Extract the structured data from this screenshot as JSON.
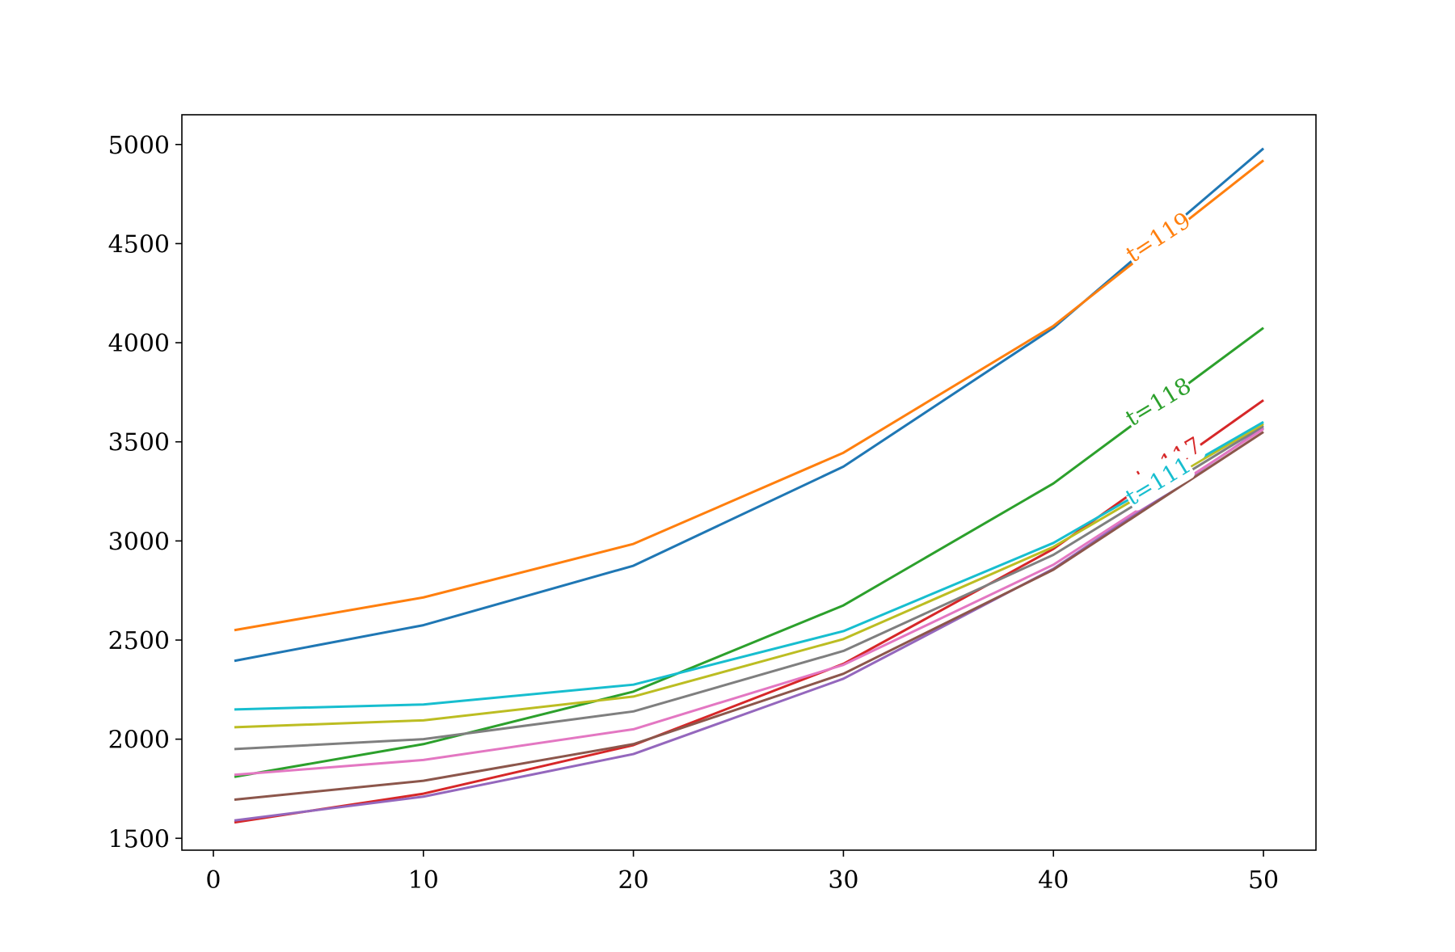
{
  "chart_data": {
    "type": "line",
    "title": "",
    "xlabel": "",
    "ylabel": "",
    "xlim": [
      -1.5,
      52.5
    ],
    "ylim": [
      1440,
      5150
    ],
    "xticks": [
      0,
      10,
      20,
      30,
      40,
      50
    ],
    "yticks": [
      1500,
      2000,
      2500,
      3000,
      3500,
      4000,
      4500,
      5000
    ],
    "grid": false,
    "x": [
      1,
      10,
      20,
      30,
      40,
      50
    ],
    "series": [
      {
        "color": "#1f77b4",
        "values": [
          2395,
          2575,
          2875,
          3375,
          4075,
          4980
        ]
      },
      {
        "color": "#ff7f0e",
        "values": [
          2550,
          2715,
          2985,
          3445,
          4085,
          4920
        ]
      },
      {
        "color": "#2ca02c",
        "values": [
          1810,
          1975,
          2240,
          2675,
          3290,
          4075
        ]
      },
      {
        "color": "#d62728",
        "values": [
          1580,
          1725,
          1970,
          2380,
          2960,
          3710
        ]
      },
      {
        "color": "#9467bd",
        "values": [
          1590,
          1710,
          1925,
          2305,
          2860,
          3570
        ]
      },
      {
        "color": "#8c564b",
        "values": [
          1695,
          1790,
          1975,
          2330,
          2855,
          3550
        ]
      },
      {
        "color": "#e377c2",
        "values": [
          1820,
          1895,
          2050,
          2375,
          2880,
          3565
        ]
      },
      {
        "color": "#7f7f7f",
        "values": [
          1950,
          2000,
          2140,
          2445,
          2930,
          3580
        ]
      },
      {
        "color": "#bcbd22",
        "values": [
          2060,
          2095,
          2215,
          2505,
          2970,
          3590
        ]
      },
      {
        "color": "#17becf",
        "values": [
          2150,
          2175,
          2275,
          2545,
          2990,
          3600
        ]
      }
    ],
    "annotations": [
      {
        "text": "t=119",
        "series": 1,
        "color": "#ff7f0e",
        "x": 45,
        "y": 4530,
        "angle_deg": -33
      },
      {
        "text": "t=118",
        "series": 2,
        "color": "#2ca02c",
        "x": 45,
        "y": 3700,
        "angle_deg": -31
      },
      {
        "text": "t=117",
        "series": 3,
        "color": "#d62728",
        "x": 45.5,
        "y": 3400,
        "angle_deg": -31
      },
      {
        "text": "t=111",
        "series": 9,
        "color": "#17becf",
        "x": 45,
        "y": 3300,
        "angle_deg": -31
      }
    ]
  }
}
